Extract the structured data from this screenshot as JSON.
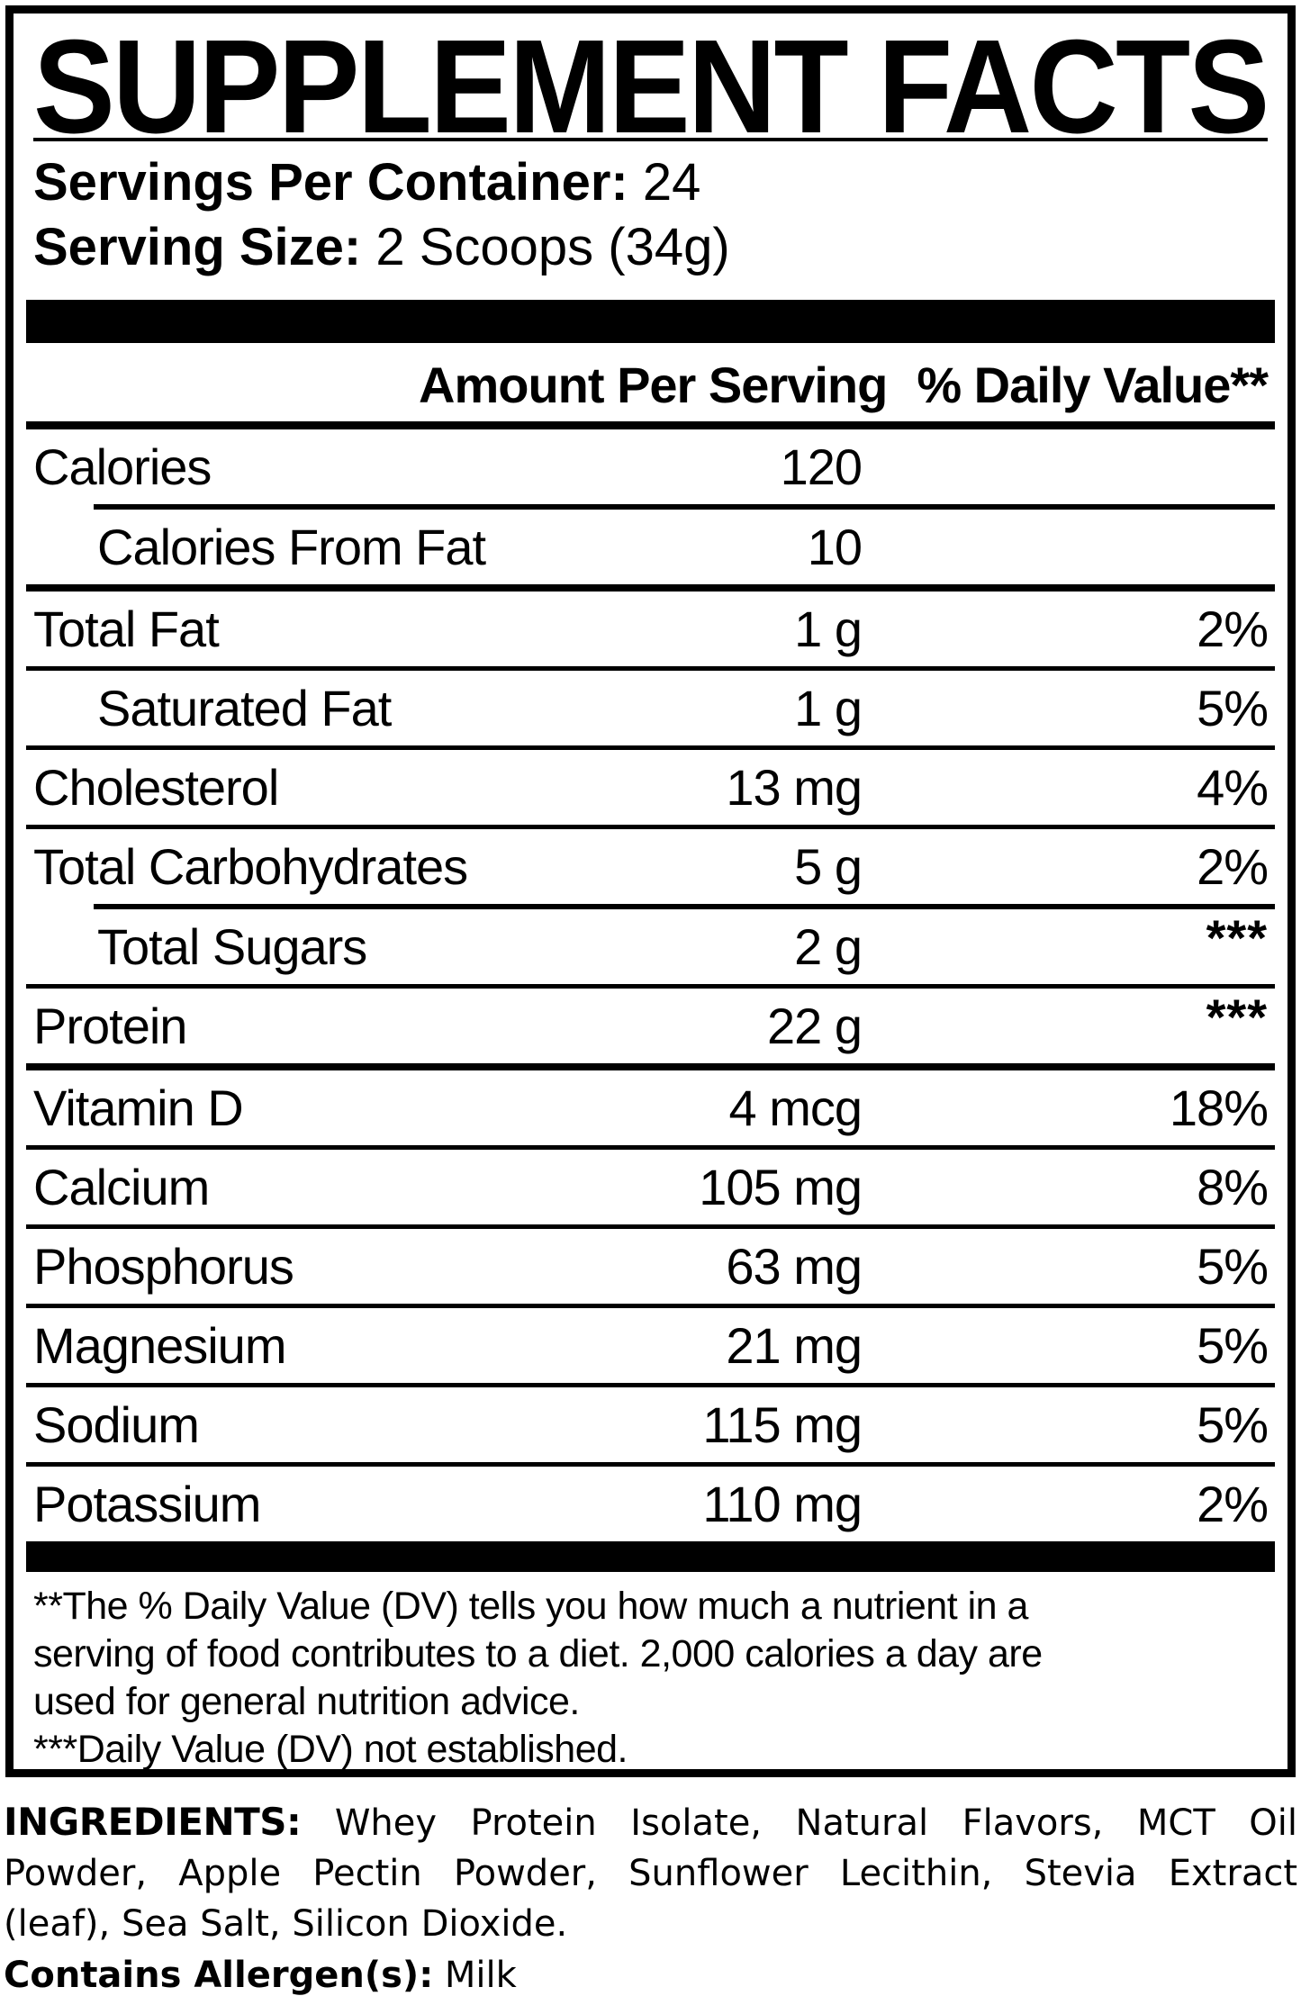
{
  "title": "SUPPLEMENT FACTS",
  "serving": {
    "spc_label": "Servings Per Container:",
    "spc_value": "24",
    "size_label": "Serving Size:",
    "size_value": "2 Scoops (34g)"
  },
  "table": {
    "header": {
      "amount": "Amount Per Serving",
      "dv": "% Daily Value**"
    },
    "rows": [
      {
        "label": "Calories",
        "amount": "120",
        "dv": ""
      },
      {
        "label": "Calories From Fat",
        "amount": "10",
        "dv": ""
      },
      {
        "label": "Total Fat",
        "amount": "1 g",
        "dv": "2%"
      },
      {
        "label": "Saturated Fat",
        "amount": "1 g",
        "dv": "5%"
      },
      {
        "label": "Cholesterol",
        "amount": "13 mg",
        "dv": "4%"
      },
      {
        "label": "Total Carbohydrates",
        "amount": "5 g",
        "dv": "2%"
      },
      {
        "label": "Total Sugars",
        "amount": "2 g",
        "dv": "***"
      },
      {
        "label": "Protein",
        "amount": "22 g",
        "dv": "***"
      },
      {
        "label": "Vitamin D",
        "amount": "4 mcg",
        "dv": "18%"
      },
      {
        "label": "Calcium",
        "amount": "105 mg",
        "dv": "8%"
      },
      {
        "label": "Phosphorus",
        "amount": "63 mg",
        "dv": "5%"
      },
      {
        "label": "Magnesium",
        "amount": "21 mg",
        "dv": "5%"
      },
      {
        "label": "Sodium",
        "amount": "115 mg",
        "dv": "5%"
      },
      {
        "label": "Potassium",
        "amount": "110 mg",
        "dv": "2%"
      }
    ]
  },
  "footnote": {
    "lines": [
      "**The % Daily Value (DV) tells you how much a nutrient in a",
      "serving of food contributes to a diet. 2,000 calories a day are",
      "used for general nutrition advice.",
      "***Daily Value (DV) not established."
    ]
  },
  "ingredients": {
    "label": "INGREDIENTS:",
    "lines": [
      "Whey Protein Isolate, Natural Flavors, MCT Oil",
      "Powder, Apple Pectin Powder, Sunflower Lecithin, Stevia Extract",
      "(leaf), Sea Salt, Silicon Dioxide."
    ],
    "allergen_label": "Contains Allergen(s):",
    "allergen_value": "Milk"
  },
  "colors": {
    "ink": "#000000",
    "paper": "#ffffff"
  }
}
